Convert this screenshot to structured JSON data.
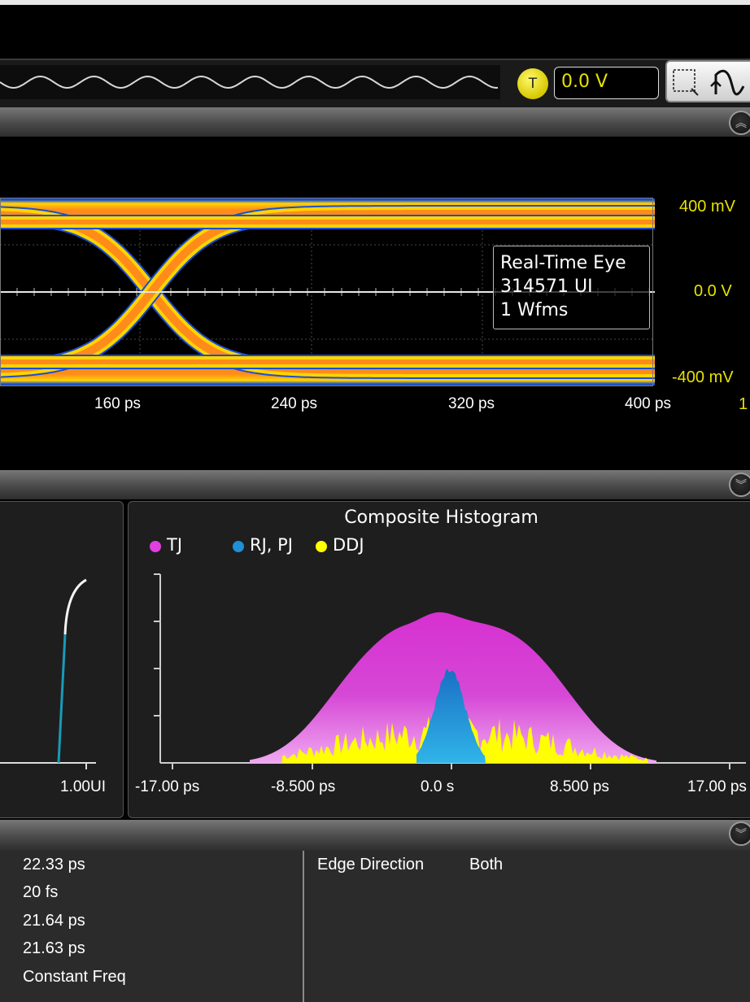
{
  "trigger": {
    "badge": "T",
    "level": "0.0 V"
  },
  "eye": {
    "y_labels": [
      "400 mV",
      "0.0 V",
      "-400 mV"
    ],
    "x_labels": [
      "160 ps",
      "240 ps",
      "320 ps",
      "400 ps"
    ],
    "right_edge_label": "1",
    "tooltip": {
      "line1": "Real-Time Eye",
      "line2": "314571 UI",
      "line3": "1 Wfms"
    }
  },
  "cdf_panel": {
    "x_label": "1.00UI"
  },
  "histogram": {
    "title": "Composite Histogram",
    "legend": [
      {
        "label": "TJ",
        "color": "#e040e0"
      },
      {
        "label": "RJ, PJ",
        "color": "#1f8fd6"
      },
      {
        "label": "DDJ",
        "color": "#ffff00"
      }
    ],
    "x_labels": [
      "-17.00 ps",
      "-8.500 ps",
      "0.0 s",
      "8.500 ps",
      "17.00 ps"
    ]
  },
  "results": {
    "values": [
      "22.33 ps",
      "20 fs",
      "21.64 ps",
      "21.63 ps",
      "Constant Freq"
    ],
    "edge_direction_label": "Edge Direction",
    "edge_direction_value": "Both"
  },
  "colors": {
    "accent_yellow": "#e6e200",
    "eye_orange": "#ff8c1a",
    "tj_magenta": "#e040e0",
    "rj_blue": "#1f8fd6",
    "ddj_yellow": "#ffff00"
  }
}
